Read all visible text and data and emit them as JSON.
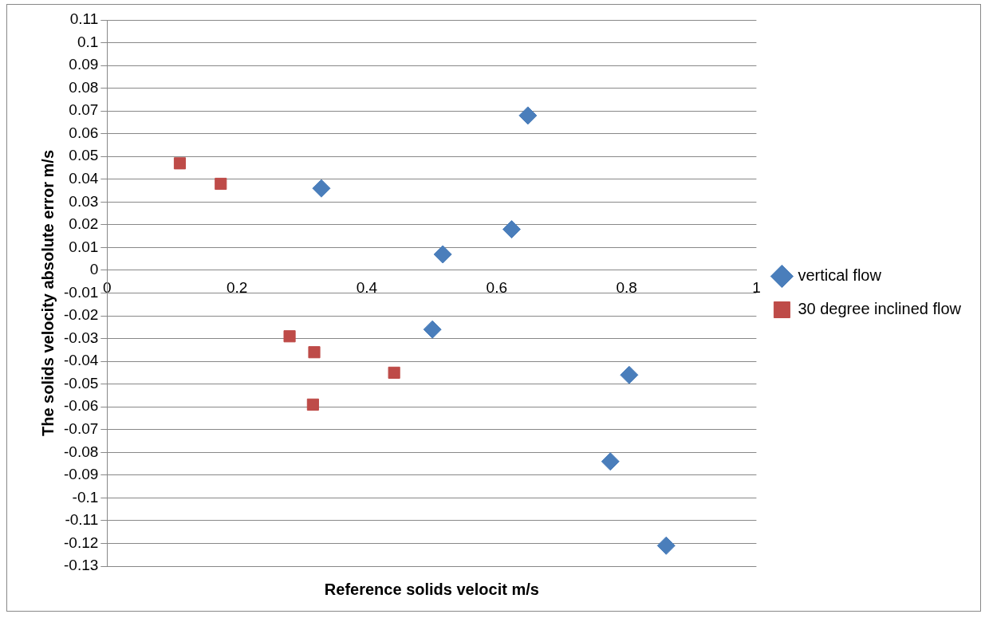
{
  "chart_data": {
    "type": "scatter",
    "xlabel": "Reference solids velocit m/s",
    "ylabel": "The solids velocity absolute error m/s",
    "xlim": [
      0,
      1
    ],
    "xticks": [
      0,
      0.2,
      0.4,
      0.6,
      0.8,
      1
    ],
    "ylim": [
      -0.13,
      0.11
    ],
    "yticks": [
      -0.13,
      -0.12,
      -0.11,
      -0.1,
      -0.09,
      -0.08,
      -0.07,
      -0.06,
      -0.05,
      -0.04,
      -0.03,
      -0.02,
      -0.01,
      0,
      0.01,
      0.02,
      0.03,
      0.04,
      0.05,
      0.06,
      0.07,
      0.08,
      0.09,
      0.1,
      0.11
    ],
    "grid": "y",
    "legend": "right",
    "series": [
      {
        "name": "vertical flow",
        "color": "#4a7ebb",
        "marker": "diamond",
        "x": [
          0.648,
          0.33,
          0.623,
          0.517,
          0.501,
          0.804,
          0.775,
          0.861
        ],
        "values": [
          0.068,
          0.036,
          0.018,
          0.007,
          -0.026,
          -0.046,
          -0.084,
          -0.121
        ]
      },
      {
        "name": "30 degree inclined flow",
        "color": "#be4b48",
        "marker": "square",
        "x": [
          0.112,
          0.175,
          0.281,
          0.319,
          0.317,
          0.442
        ],
        "values": [
          0.047,
          0.038,
          -0.029,
          -0.036,
          -0.059,
          -0.045
        ]
      }
    ]
  }
}
